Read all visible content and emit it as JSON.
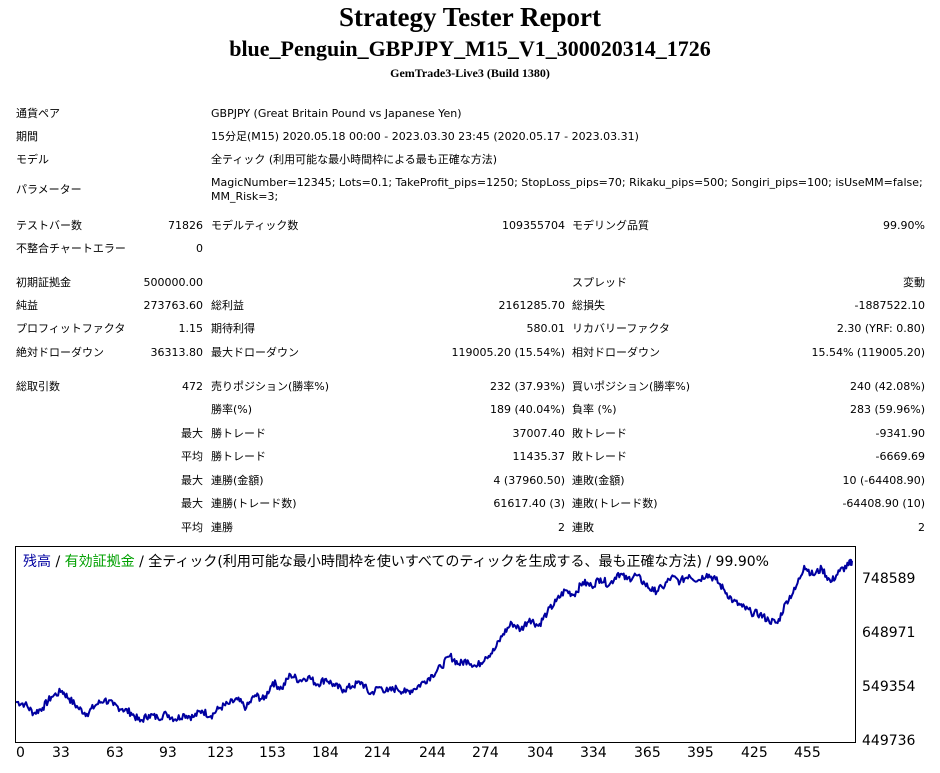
{
  "header": {
    "title": "Strategy Tester Report",
    "subtitle": "blue_Penguin_GBPJPY_M15_V1_300020314_1726",
    "server": "GemTrade3-Live3 (Build 1380)"
  },
  "info": [
    {
      "label": "通貨ペア",
      "value": "GBPJPY (Great Britain Pound vs Japanese Yen)"
    },
    {
      "label": "期間",
      "value": "15分足(M15) 2020.05.18 00:00 - 2023.03.30 23:45 (2020.05.17 - 2023.03.31)"
    },
    {
      "label": "モデル",
      "value": "全ティック (利用可能な最小時間枠による最も正確な方法)"
    },
    {
      "label": "パラメーター",
      "value_line1": "MagicNumber=12345; Lots=0.1; TakeProfit_pips=1250; StopLoss_pips=70; Rikaku_pips=500; Songiri_pips=100; isUseMM=false;",
      "value_line2": "MM_Risk=3;"
    }
  ],
  "stats": {
    "bars_label": "テストバー数",
    "bars_value": "71826",
    "ticks_label": "モデルティック数",
    "ticks_value": "109355704",
    "quality_label": "モデリング品質",
    "quality_value": "99.90%",
    "mismatch_label": "不整合チャートエラー",
    "mismatch_value": "0",
    "deposit_label": "初期証拠金",
    "deposit_value": "500000.00",
    "spread_label": "スプレッド",
    "spread_value": "変動",
    "net_label": "純益",
    "net_value": "273763.60",
    "gross_profit_label": "総利益",
    "gross_profit_value": "2161285.70",
    "gross_loss_label": "総損失",
    "gross_loss_value": "-1887522.10",
    "pf_label": "プロフィットファクタ",
    "pf_value": "1.15",
    "payoff_label": "期待利得",
    "payoff_value": "580.01",
    "rf_label": "リカバリーファクタ",
    "rf_value": "2.30 (YRF: 0.80)",
    "abs_dd_label": "絶対ドローダウン",
    "abs_dd_value": "36313.80",
    "max_dd_label": "最大ドローダウン",
    "max_dd_value": "119005.20 (15.54%)",
    "rel_dd_label": "相対ドローダウン",
    "rel_dd_value": "15.54% (119005.20)",
    "trades_label": "総取引数",
    "trades_value": "472",
    "short_label": "売りポジション(勝率%)",
    "short_value": "232 (37.93%)",
    "long_label": "買いポジション(勝率%)",
    "long_value": "240 (42.08%)",
    "win_rate_label": "勝率(%)",
    "win_rate_value": "189 (40.04%)",
    "loss_rate_label": "負率 (%)",
    "loss_rate_value": "283 (59.96%)",
    "max_label": "最大",
    "avg_label": "平均",
    "win_trade_label": "勝トレード",
    "loss_trade_label": "敗トレード",
    "max_win_value": "37007.40",
    "max_loss_value": "-9341.90",
    "avg_win_value": "11435.37",
    "avg_loss_value": "-6669.69",
    "cons_win_amt_label": "連勝(金額)",
    "cons_win_amt_value": "4 (37960.50)",
    "cons_loss_amt_label": "連敗(金額)",
    "cons_loss_amt_value": "10 (-64408.90)",
    "cons_win_trd_label": "連勝(トレード数)",
    "cons_win_trd_value": "61617.40 (3)",
    "cons_loss_trd_label": "連敗(トレード数)",
    "cons_loss_trd_value": "-64408.90 (10)",
    "avg_cons_win_label": "連勝",
    "avg_cons_win_value": "2",
    "avg_cons_loss_label": "連敗",
    "avg_cons_loss_value": "2"
  },
  "chart_legend": {
    "balance": "残高",
    "sep1": " / ",
    "equity": "有効証拠金",
    "rest": " / 全ティック(利用可能な最小時間枠を使いすべてのティックを生成する、最も正確な方法) / 99.90%"
  },
  "chart_data": {
    "type": "line",
    "x_ticks": [
      "0",
      "33",
      "63",
      "93",
      "123",
      "153",
      "184",
      "214",
      "244",
      "274",
      "304",
      "334",
      "365",
      "395",
      "425",
      "455"
    ],
    "y_ticks": [
      "748589",
      "648971",
      "549354",
      "449736"
    ],
    "ylim": [
      449736,
      792000
    ],
    "xlim": [
      0,
      472
    ],
    "series": [
      {
        "values": [
          [
            0,
            516000
          ],
          [
            5,
            512000
          ],
          [
            10,
            495000
          ],
          [
            15,
            505000
          ],
          [
            20,
            525000
          ],
          [
            26,
            536000
          ],
          [
            30,
            522000
          ],
          [
            35,
            505000
          ],
          [
            40,
            494000
          ],
          [
            45,
            510000
          ],
          [
            50,
            520000
          ],
          [
            55,
            510000
          ],
          [
            60,
            503000
          ],
          [
            65,
            496000
          ],
          [
            70,
            480000
          ],
          [
            75,
            492000
          ],
          [
            80,
            487000
          ],
          [
            85,
            494000
          ],
          [
            90,
            484000
          ],
          [
            95,
            493000
          ],
          [
            100,
            488000
          ],
          [
            105,
            500000
          ],
          [
            110,
            490000
          ],
          [
            115,
            505000
          ],
          [
            120,
            512000
          ],
          [
            125,
            520000
          ],
          [
            130,
            505000
          ],
          [
            135,
            528000
          ],
          [
            140,
            520000
          ],
          [
            145,
            552000
          ],
          [
            150,
            540000
          ],
          [
            155,
            566000
          ],
          [
            160,
            555000
          ],
          [
            165,
            562000
          ],
          [
            170,
            548000
          ],
          [
            175,
            558000
          ],
          [
            180,
            545000
          ],
          [
            185,
            538000
          ],
          [
            190,
            545000
          ],
          [
            195,
            552000
          ],
          [
            200,
            530000
          ],
          [
            205,
            543000
          ],
          [
            210,
            535000
          ],
          [
            215,
            541000
          ],
          [
            220,
            533000
          ],
          [
            225,
            540000
          ],
          [
            230,
            552000
          ],
          [
            235,
            565000
          ],
          [
            240,
            580000
          ],
          [
            245,
            600000
          ],
          [
            250,
            585000
          ],
          [
            255,
            592000
          ],
          [
            260,
            580000
          ],
          [
            265,
            598000
          ],
          [
            270,
            610000
          ],
          [
            275,
            640000
          ],
          [
            280,
            660000
          ],
          [
            285,
            648000
          ],
          [
            290,
            668000
          ],
          [
            295,
            655000
          ],
          [
            300,
            680000
          ],
          [
            305,
            700000
          ],
          [
            310,
            720000
          ],
          [
            315,
            712000
          ],
          [
            320,
            735000
          ],
          [
            325,
            728000
          ],
          [
            330,
            742000
          ],
          [
            335,
            730000
          ],
          [
            340,
            752000
          ],
          [
            345,
            740000
          ],
          [
            350,
            748000
          ],
          [
            355,
            732000
          ],
          [
            360,
            718000
          ],
          [
            365,
            725000
          ],
          [
            370,
            744000
          ],
          [
            375,
            736000
          ],
          [
            380,
            748000
          ],
          [
            385,
            738000
          ],
          [
            390,
            750000
          ],
          [
            395,
            740000
          ],
          [
            400,
            720000
          ],
          [
            405,
            700000
          ],
          [
            410,
            690000
          ],
          [
            415,
            680000
          ],
          [
            420,
            676000
          ],
          [
            425,
            665000
          ],
          [
            430,
            660000
          ],
          [
            435,
            700000
          ],
          [
            440,
            722000
          ],
          [
            445,
            765000
          ],
          [
            450,
            748000
          ],
          [
            455,
            760000
          ],
          [
            460,
            735000
          ],
          [
            465,
            755000
          ],
          [
            470,
            766000
          ],
          [
            472,
            774000
          ]
        ]
      }
    ],
    "line_color": "#0000a0"
  }
}
